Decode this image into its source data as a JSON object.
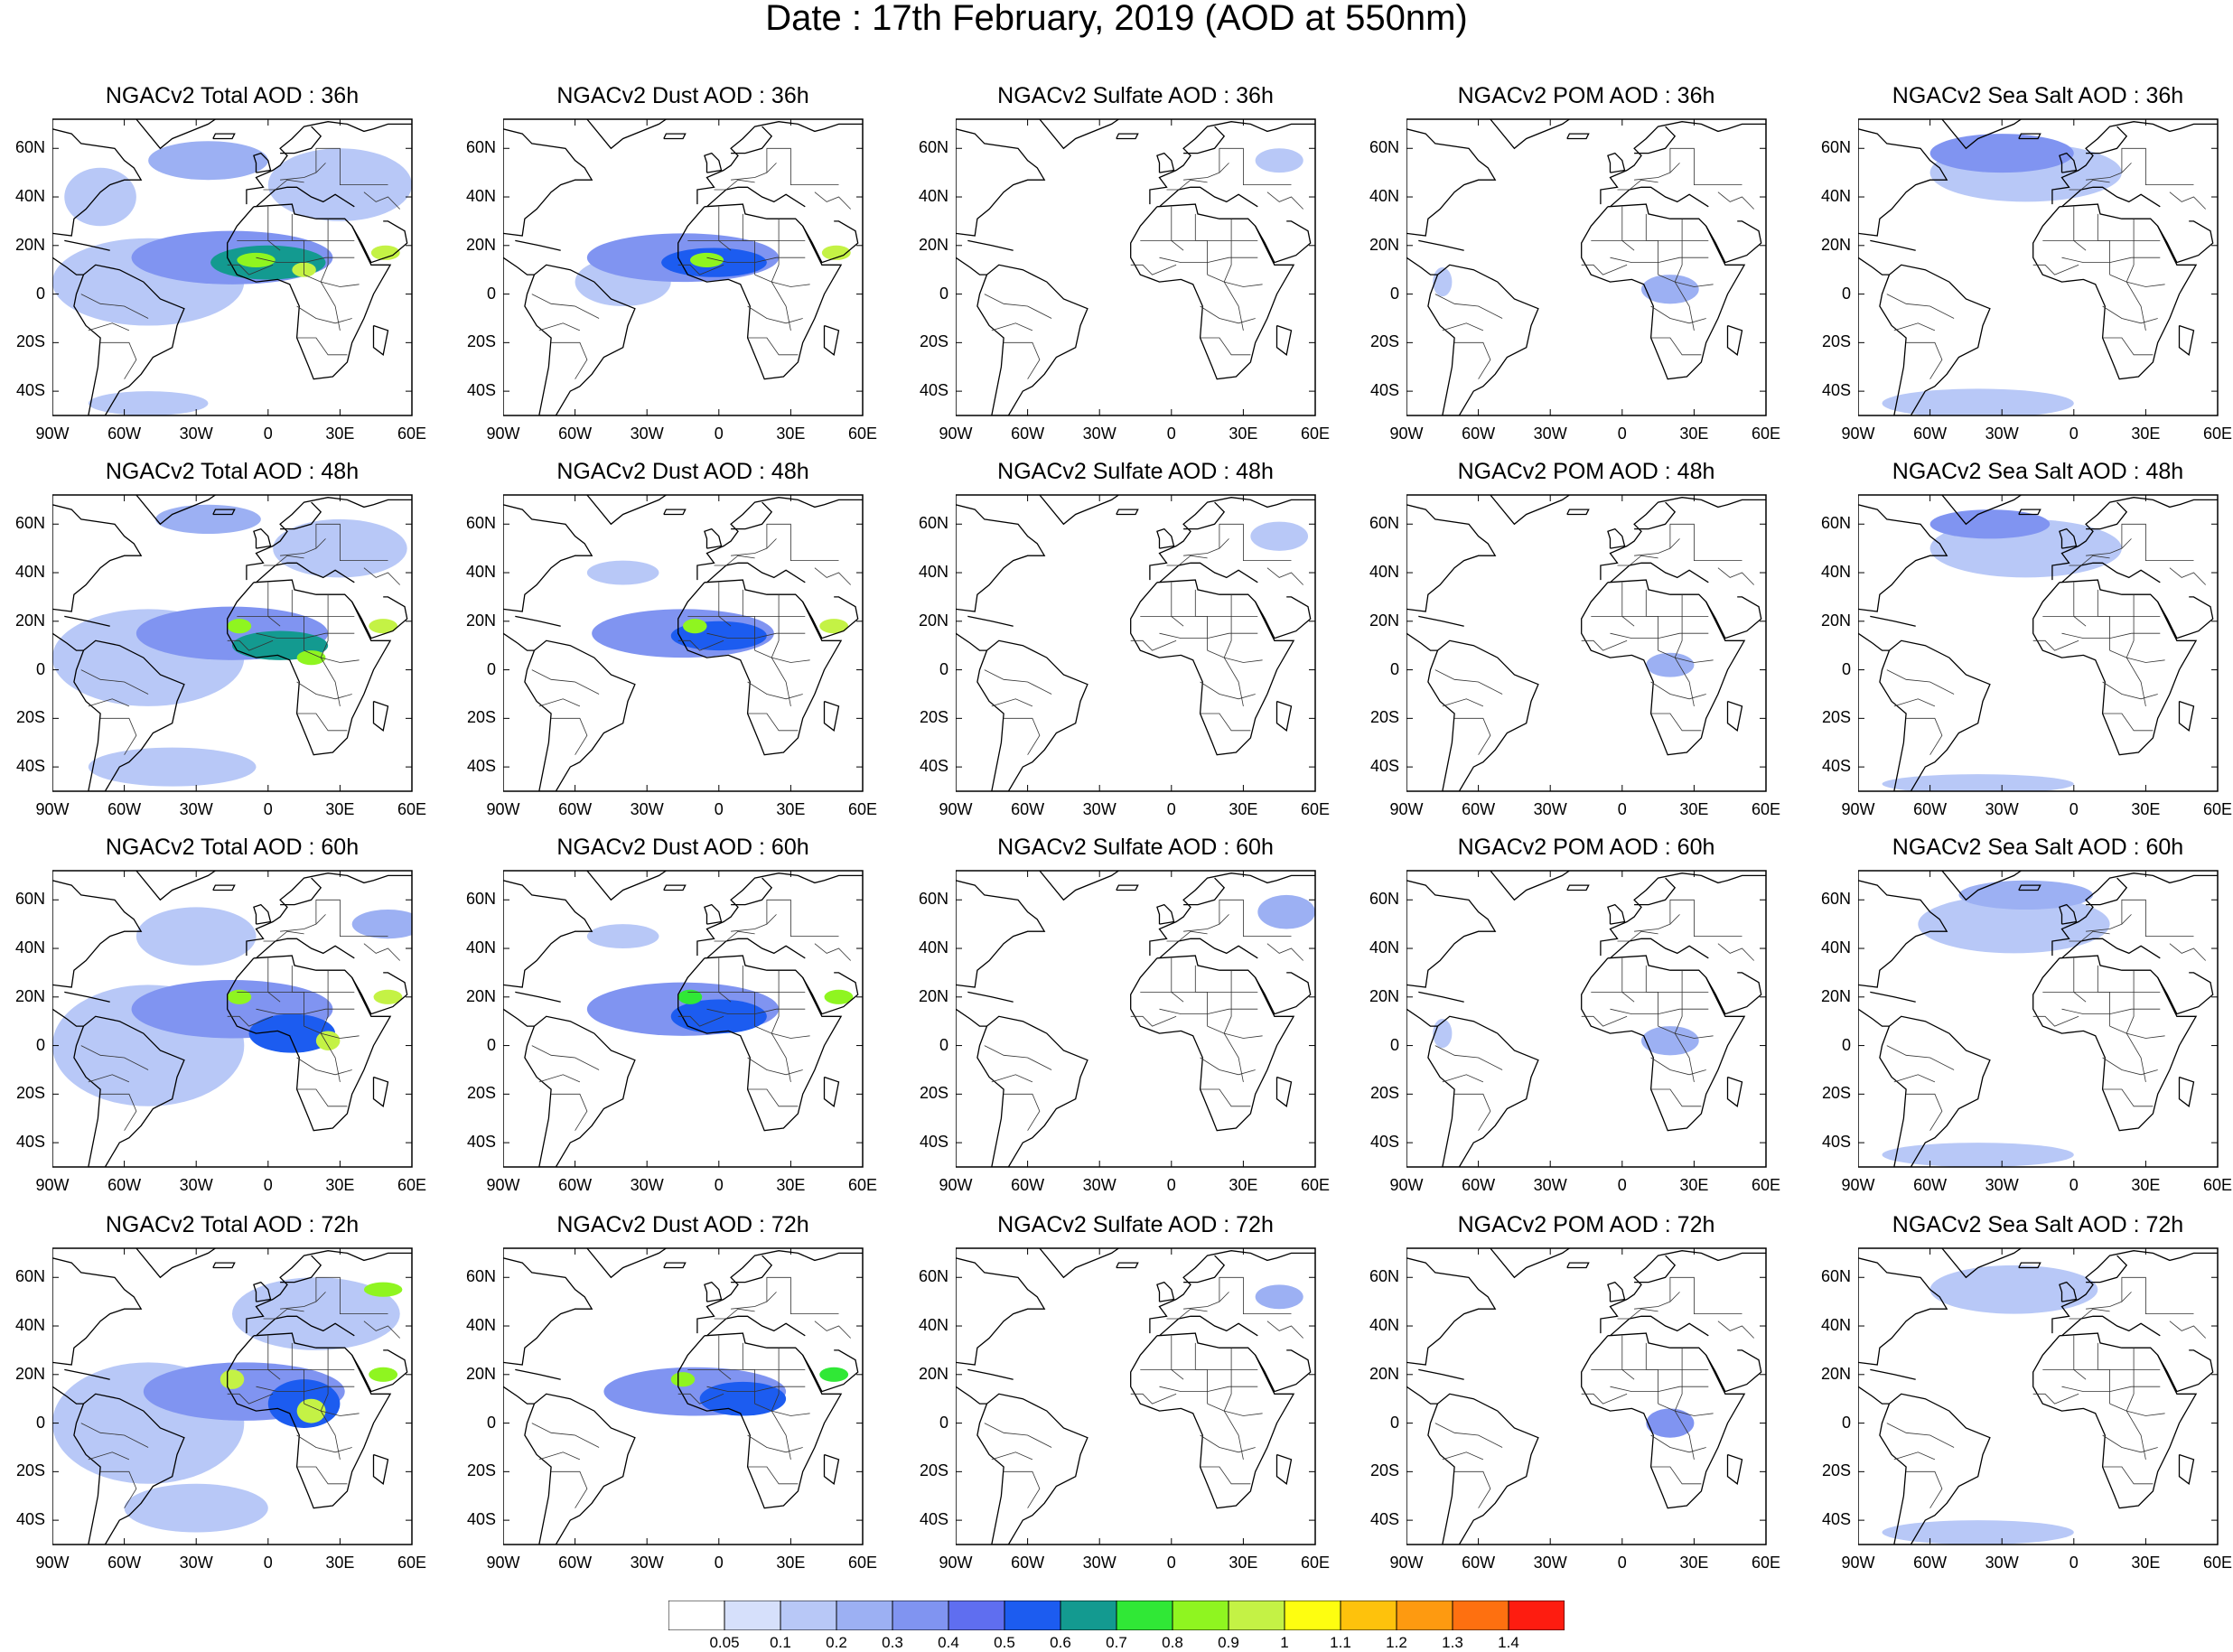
{
  "title": "Date : 17th February, 2019 (AOD at 550nm)",
  "map_extent": {
    "lon": [
      -90,
      60
    ],
    "lat": [
      -50,
      72
    ]
  },
  "lat_ticks": [
    "60N",
    "40N",
    "20N",
    "0",
    "20S",
    "40S"
  ],
  "lon_ticks": [
    "90W",
    "60W",
    "30W",
    "0",
    "30E",
    "60E"
  ],
  "rows": [
    "36h",
    "48h",
    "60h",
    "72h"
  ],
  "columns": [
    "Total",
    "Dust",
    "Sulfate",
    "POM",
    "Sea Salt"
  ],
  "panels": [
    [
      "NGACv2 Total AOD : 36h",
      "NGACv2 Dust AOD : 36h",
      "NGACv2 Sulfate AOD : 36h",
      "NGACv2 POM AOD : 36h",
      "NGACv2 Sea Salt AOD : 36h"
    ],
    [
      "NGACv2 Total AOD : 48h",
      "NGACv2 Dust AOD : 48h",
      "NGACv2 Sulfate AOD : 48h",
      "NGACv2 POM AOD : 48h",
      "NGACv2 Sea Salt AOD : 48h"
    ],
    [
      "NGACv2 Total AOD : 60h",
      "NGACv2 Dust AOD : 60h",
      "NGACv2 Sulfate AOD : 60h",
      "NGACv2 POM AOD : 60h",
      "NGACv2 Sea Salt AOD : 60h"
    ],
    [
      "NGACv2 Total AOD : 72h",
      "NGACv2 Dust AOD : 72h",
      "NGACv2 Sulfate AOD : 72h",
      "NGACv2 POM AOD : 72h",
      "NGACv2 Sea Salt  AOD : 72h"
    ]
  ],
  "colorbar": {
    "labels": [
      "0.05",
      "0.1",
      "0.2",
      "0.3",
      "0.4",
      "0.5",
      "0.6",
      "0.7",
      "0.8",
      "0.9",
      "1",
      "1.1",
      "1.2",
      "1.3",
      "1.4"
    ],
    "colors": [
      "#ffffff",
      "#d6e0fb",
      "#b8c8f7",
      "#9cb0f3",
      "#8094f1",
      "#5f6ef0",
      "#1c5cf0",
      "#139a90",
      "#30e836",
      "#8ff520",
      "#c4f245",
      "#fefe10",
      "#fec20c",
      "#fe9a10",
      "#fe7010",
      "#fe1c10"
    ]
  },
  "fields": {
    "Total": {
      "36h": [
        {
          "lon": -15,
          "lat": 15,
          "rx": 42,
          "ry": 11,
          "v": 0.35
        },
        {
          "lon": 0,
          "lat": 13,
          "rx": 24,
          "ry": 7,
          "v": 0.6
        },
        {
          "lon": -5,
          "lat": 14,
          "rx": 8,
          "ry": 3,
          "v": 0.85
        },
        {
          "lon": 15,
          "lat": 10,
          "rx": 5,
          "ry": 3,
          "v": 0.9
        },
        {
          "lon": 49,
          "lat": 17,
          "rx": 6,
          "ry": 3,
          "v": 0.9
        },
        {
          "lon": -50,
          "lat": 5,
          "rx": 40,
          "ry": 18,
          "v": 0.12
        },
        {
          "lon": -25,
          "lat": 55,
          "rx": 25,
          "ry": 8,
          "v": 0.2
        },
        {
          "lon": -50,
          "lat": -45,
          "rx": 25,
          "ry": 5,
          "v": 0.15
        },
        {
          "lon": 30,
          "lat": 45,
          "rx": 30,
          "ry": 15,
          "v": 0.12
        },
        {
          "lon": -70,
          "lat": 40,
          "rx": 15,
          "ry": 12,
          "v": 0.1
        }
      ],
      "48h": [
        {
          "lon": -15,
          "lat": 15,
          "rx": 40,
          "ry": 11,
          "v": 0.35
        },
        {
          "lon": 5,
          "lat": 10,
          "rx": 20,
          "ry": 6,
          "v": 0.6
        },
        {
          "lon": -12,
          "lat": 18,
          "rx": 5,
          "ry": 3,
          "v": 0.85
        },
        {
          "lon": 18,
          "lat": 5,
          "rx": 6,
          "ry": 3,
          "v": 0.85
        },
        {
          "lon": 48,
          "lat": 18,
          "rx": 6,
          "ry": 3,
          "v": 0.9
        },
        {
          "lon": -25,
          "lat": 62,
          "rx": 22,
          "ry": 6,
          "v": 0.25
        },
        {
          "lon": -50,
          "lat": 5,
          "rx": 40,
          "ry": 20,
          "v": 0.12
        },
        {
          "lon": -40,
          "lat": -40,
          "rx": 35,
          "ry": 8,
          "v": 0.12
        },
        {
          "lon": 30,
          "lat": 50,
          "rx": 28,
          "ry": 12,
          "v": 0.12
        }
      ],
      "60h": [
        {
          "lon": -15,
          "lat": 15,
          "rx": 42,
          "ry": 12,
          "v": 0.35
        },
        {
          "lon": 10,
          "lat": 5,
          "rx": 18,
          "ry": 8,
          "v": 0.55
        },
        {
          "lon": -12,
          "lat": 20,
          "rx": 5,
          "ry": 3,
          "v": 0.85
        },
        {
          "lon": 25,
          "lat": 2,
          "rx": 5,
          "ry": 4,
          "v": 0.95
        },
        {
          "lon": 50,
          "lat": 20,
          "rx": 6,
          "ry": 3,
          "v": 0.9
        },
        {
          "lon": -50,
          "lat": 0,
          "rx": 40,
          "ry": 25,
          "v": 0.12
        },
        {
          "lon": 50,
          "lat": 50,
          "rx": 15,
          "ry": 6,
          "v": 0.2
        },
        {
          "lon": -30,
          "lat": 45,
          "rx": 25,
          "ry": 12,
          "v": 0.12
        }
      ],
      "72h": [
        {
          "lon": -10,
          "lat": 13,
          "rx": 42,
          "ry": 12,
          "v": 0.35
        },
        {
          "lon": 15,
          "lat": 8,
          "rx": 15,
          "ry": 10,
          "v": 0.55
        },
        {
          "lon": -15,
          "lat": 18,
          "rx": 5,
          "ry": 4,
          "v": 0.9
        },
        {
          "lon": 18,
          "lat": 5,
          "rx": 6,
          "ry": 5,
          "v": 0.9
        },
        {
          "lon": 48,
          "lat": 20,
          "rx": 6,
          "ry": 3,
          "v": 0.8
        },
        {
          "lon": 48,
          "lat": 55,
          "rx": 8,
          "ry": 3,
          "v": 0.8
        },
        {
          "lon": -50,
          "lat": 0,
          "rx": 40,
          "ry": 25,
          "v": 0.12
        },
        {
          "lon": 20,
          "lat": 45,
          "rx": 35,
          "ry": 15,
          "v": 0.12
        },
        {
          "lon": -30,
          "lat": -35,
          "rx": 30,
          "ry": 10,
          "v": 0.12
        }
      ]
    },
    "Dust": {
      "36h": [
        {
          "lon": -15,
          "lat": 15,
          "rx": 40,
          "ry": 10,
          "v": 0.3
        },
        {
          "lon": -2,
          "lat": 13,
          "rx": 22,
          "ry": 6,
          "v": 0.55
        },
        {
          "lon": -5,
          "lat": 14,
          "rx": 7,
          "ry": 3,
          "v": 0.8
        },
        {
          "lon": 49,
          "lat": 17,
          "rx": 6,
          "ry": 3,
          "v": 0.9
        },
        {
          "lon": -40,
          "lat": 5,
          "rx": 20,
          "ry": 10,
          "v": 0.12
        }
      ],
      "48h": [
        {
          "lon": -15,
          "lat": 15,
          "rx": 38,
          "ry": 10,
          "v": 0.3
        },
        {
          "lon": 0,
          "lat": 14,
          "rx": 20,
          "ry": 6,
          "v": 0.55
        },
        {
          "lon": -10,
          "lat": 18,
          "rx": 5,
          "ry": 3,
          "v": 0.8
        },
        {
          "lon": 48,
          "lat": 18,
          "rx": 6,
          "ry": 3,
          "v": 0.9
        },
        {
          "lon": -40,
          "lat": 40,
          "rx": 15,
          "ry": 5,
          "v": 0.1
        }
      ],
      "60h": [
        {
          "lon": -15,
          "lat": 15,
          "rx": 40,
          "ry": 11,
          "v": 0.3
        },
        {
          "lon": 0,
          "lat": 12,
          "rx": 20,
          "ry": 7,
          "v": 0.5
        },
        {
          "lon": -12,
          "lat": 20,
          "rx": 5,
          "ry": 3,
          "v": 0.75
        },
        {
          "lon": 50,
          "lat": 20,
          "rx": 6,
          "ry": 3,
          "v": 0.85
        },
        {
          "lon": -40,
          "lat": 45,
          "rx": 15,
          "ry": 5,
          "v": 0.1
        }
      ],
      "72h": [
        {
          "lon": -10,
          "lat": 13,
          "rx": 38,
          "ry": 10,
          "v": 0.3
        },
        {
          "lon": 10,
          "lat": 10,
          "rx": 18,
          "ry": 7,
          "v": 0.5
        },
        {
          "lon": -15,
          "lat": 18,
          "rx": 5,
          "ry": 3,
          "v": 0.8
        },
        {
          "lon": 48,
          "lat": 20,
          "rx": 6,
          "ry": 3,
          "v": 0.75
        }
      ]
    },
    "Sulfate": {
      "36h": [
        {
          "lon": 45,
          "lat": 55,
          "rx": 10,
          "ry": 5,
          "v": 0.12
        }
      ],
      "48h": [
        {
          "lon": 45,
          "lat": 55,
          "rx": 12,
          "ry": 6,
          "v": 0.15
        }
      ],
      "60h": [
        {
          "lon": 48,
          "lat": 55,
          "rx": 12,
          "ry": 7,
          "v": 0.2
        }
      ],
      "72h": [
        {
          "lon": 45,
          "lat": 52,
          "rx": 10,
          "ry": 5,
          "v": 0.25
        }
      ]
    },
    "POM": {
      "36h": [
        {
          "lon": 20,
          "lat": 2,
          "rx": 12,
          "ry": 6,
          "v": 0.2
        },
        {
          "lon": -75,
          "lat": 5,
          "rx": 4,
          "ry": 6,
          "v": 0.12
        }
      ],
      "48h": [
        {
          "lon": 20,
          "lat": 2,
          "rx": 10,
          "ry": 5,
          "v": 0.25
        }
      ],
      "60h": [
        {
          "lon": 20,
          "lat": 2,
          "rx": 12,
          "ry": 6,
          "v": 0.25
        },
        {
          "lon": -75,
          "lat": 5,
          "rx": 4,
          "ry": 6,
          "v": 0.12
        }
      ],
      "72h": [
        {
          "lon": 20,
          "lat": 0,
          "rx": 10,
          "ry": 6,
          "v": 0.3
        }
      ]
    },
    "Sea Salt": {
      "36h": [
        {
          "lon": -30,
          "lat": 58,
          "rx": 30,
          "ry": 8,
          "v": 0.3
        },
        {
          "lon": -20,
          "lat": 50,
          "rx": 40,
          "ry": 12,
          "v": 0.12
        },
        {
          "lon": -40,
          "lat": -45,
          "rx": 40,
          "ry": 6,
          "v": 0.15
        }
      ],
      "48h": [
        {
          "lon": -35,
          "lat": 60,
          "rx": 25,
          "ry": 6,
          "v": 0.35
        },
        {
          "lon": -20,
          "lat": 50,
          "rx": 40,
          "ry": 12,
          "v": 0.12
        },
        {
          "lon": -40,
          "lat": -47,
          "rx": 40,
          "ry": 4,
          "v": 0.12
        }
      ],
      "60h": [
        {
          "lon": -20,
          "lat": 62,
          "rx": 28,
          "ry": 6,
          "v": 0.25
        },
        {
          "lon": -25,
          "lat": 50,
          "rx": 40,
          "ry": 12,
          "v": 0.12
        },
        {
          "lon": -40,
          "lat": -45,
          "rx": 40,
          "ry": 5,
          "v": 0.12
        }
      ],
      "72h": [
        {
          "lon": -25,
          "lat": 55,
          "rx": 35,
          "ry": 10,
          "v": 0.15
        },
        {
          "lon": -40,
          "lat": -45,
          "rx": 40,
          "ry": 5,
          "v": 0.1
        }
      ]
    }
  }
}
